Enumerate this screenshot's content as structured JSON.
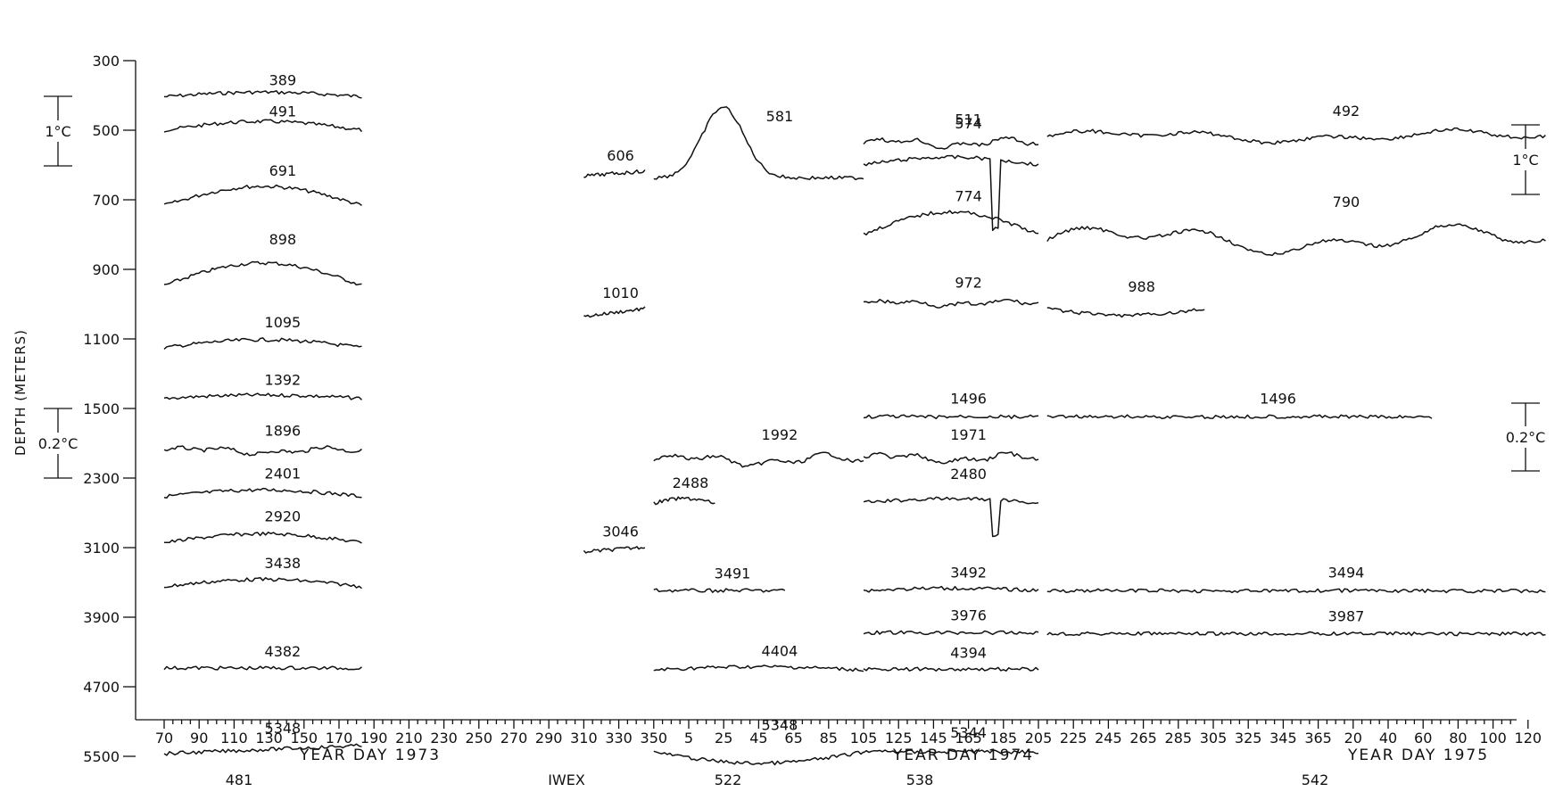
{
  "chart_data": {
    "type": "line",
    "ylabel": "DEPTH (METERS)",
    "y_ticks": [
      "300",
      "500",
      "700",
      "900",
      "1100",
      "1500",
      "2300",
      "3100",
      "3900",
      "4700",
      "5500"
    ],
    "x_tick_labels": [
      "70",
      "90",
      "110",
      "130",
      "150",
      "170",
      "190",
      "210",
      "230",
      "250",
      "270",
      "290",
      "310",
      "330",
      "350",
      "5",
      "25",
      "45",
      "65",
      "85",
      "105",
      "125",
      "145",
      "165",
      "185",
      "205",
      "225",
      "245",
      "265",
      "285",
      "305",
      "325",
      "345",
      "365",
      "20",
      "40",
      "60",
      "80",
      "100",
      "120"
    ],
    "year_labels": [
      "YEAR DAY  1973",
      "YEAR DAY  1974",
      "YEAR DAY  1975"
    ],
    "mooring_labels": [
      "481",
      "IWEX",
      "522",
      "538",
      "542"
    ],
    "scale_bars": {
      "left_upper": "1°C",
      "left_lower": "0.2°C",
      "right_upper": "1°C",
      "right_lower": "0.2°C"
    },
    "series": [
      {
        "name": "389",
        "depth_m": 389,
        "start": 70,
        "end": 183,
        "level": 0.85,
        "amp": 0.28,
        "shape": "hump"
      },
      {
        "name": "491",
        "depth_m": 491,
        "start": 70,
        "end": 183,
        "level": 0.65,
        "amp": 0.55,
        "shape": "hump"
      },
      {
        "name": "691",
        "depth_m": 691,
        "start": 70,
        "end": 183,
        "level": 0.0,
        "amp": 1.2,
        "shape": "hump"
      },
      {
        "name": "898",
        "depth_m": 898,
        "start": 70,
        "end": 183,
        "level": -0.35,
        "amp": 1.4,
        "shape": "hump"
      },
      {
        "name": "1095",
        "depth_m": 1095,
        "start": 70,
        "end": 183,
        "level": -0.2,
        "amp": 0.5,
        "shape": "hump"
      },
      {
        "name": "1392",
        "depth_m": 1392,
        "start": 70,
        "end": 183,
        "level": 0.1,
        "amp": 0.2,
        "shape": "hump"
      },
      {
        "name": "1896",
        "depth_m": 1896,
        "start": 70,
        "end": 183,
        "level": 0.2,
        "amp": 0.35,
        "shape": "noisy"
      },
      {
        "name": "2401",
        "depth_m": 2401,
        "start": 70,
        "end": 183,
        "level": -0.1,
        "amp": 0.4,
        "shape": "hump"
      },
      {
        "name": "2920",
        "depth_m": 2920,
        "start": 70,
        "end": 183,
        "level": -0.2,
        "amp": 0.55,
        "shape": "hump"
      },
      {
        "name": "3438",
        "depth_m": 3438,
        "start": 70,
        "end": 183,
        "level": -0.1,
        "amp": 0.45,
        "shape": "hump"
      },
      {
        "name": "4382",
        "depth_m": 4382,
        "start": 70,
        "end": 183,
        "level": 0.0,
        "amp": 0.05,
        "shape": "flat"
      },
      {
        "name": "5348",
        "depth_m": 5348,
        "start": 70,
        "end": 183,
        "level": -0.2,
        "amp": 0.5,
        "shape": "rise"
      },
      {
        "name": "606",
        "depth_m": 606,
        "start": 310,
        "end": 345,
        "level": 0.0,
        "amp": 0.3,
        "shape": "rise"
      },
      {
        "name": "1010",
        "depth_m": 1010,
        "start": 310,
        "end": 345,
        "level": 0.0,
        "amp": 0.5,
        "shape": "rise"
      },
      {
        "name": "3046",
        "depth_m": 3046,
        "start": 310,
        "end": 345,
        "level": 0.0,
        "amp": 0.3,
        "shape": "rise"
      },
      {
        "name": "581",
        "depth_m": 581,
        "start": 350,
        "end": 470,
        "level": 0.0,
        "amp": 2.2,
        "shape": "peak"
      },
      {
        "name": "1992",
        "depth_m": 1992,
        "start": 350,
        "end": 470,
        "level": 0.0,
        "amp": 0.6,
        "shape": "noisy"
      },
      {
        "name": "2488",
        "depth_m": 2488,
        "start": 350,
        "end": 385,
        "level": 0.0,
        "amp": 0.3,
        "shape": "hump"
      },
      {
        "name": "3491",
        "depth_m": 3491,
        "start": 350,
        "end": 425,
        "level": 0.0,
        "amp": 0.1,
        "shape": "flat"
      },
      {
        "name": "4404",
        "depth_m": 4404,
        "start": 350,
        "end": 470,
        "level": 0.0,
        "amp": 0.2,
        "shape": "hump"
      },
      {
        "name": "5348",
        "depth_m": 5348,
        "start": 350,
        "end": 470,
        "level": 0.0,
        "amp": 0.7,
        "shape": "dip"
      },
      {
        "name": "511",
        "depth_m": 511,
        "start": 470,
        "end": 570,
        "level": 0.0,
        "amp": 0.5,
        "shape": "noisy"
      },
      {
        "name": "574",
        "depth_m": 574,
        "start": 470,
        "end": 570,
        "level": 0.0,
        "amp": 1.6,
        "shape": "spike"
      },
      {
        "name": "774",
        "depth_m": 774,
        "start": 470,
        "end": 570,
        "level": 0.0,
        "amp": 1.4,
        "shape": "hump"
      },
      {
        "name": "972",
        "depth_m": 972,
        "start": 470,
        "end": 570,
        "level": 0.0,
        "amp": 0.3,
        "shape": "noisy"
      },
      {
        "name": "1496",
        "depth_m": 1496,
        "start": 470,
        "end": 570,
        "level": 0.0,
        "amp": 0.15,
        "shape": "flat"
      },
      {
        "name": "1971",
        "depth_m": 1971,
        "start": 470,
        "end": 570,
        "level": 0.0,
        "amp": 0.5,
        "shape": "noisy"
      },
      {
        "name": "2480",
        "depth_m": 2480,
        "start": 470,
        "end": 570,
        "level": 0.0,
        "amp": 0.8,
        "shape": "spike"
      },
      {
        "name": "3492",
        "depth_m": 3492,
        "start": 470,
        "end": 570,
        "level": 0.0,
        "amp": 0.15,
        "shape": "hump"
      },
      {
        "name": "3976",
        "depth_m": 3976,
        "start": 470,
        "end": 570,
        "level": 0.0,
        "amp": 0.1,
        "shape": "flat"
      },
      {
        "name": "4394",
        "depth_m": 4394,
        "start": 470,
        "end": 570,
        "level": 0.0,
        "amp": 0.05,
        "shape": "flat"
      },
      {
        "name": "5344",
        "depth_m": 5344,
        "start": 470,
        "end": 570,
        "level": 0.0,
        "amp": 0.2,
        "shape": "flat"
      },
      {
        "name": "492",
        "depth_m": 492,
        "start": 575,
        "end": 860,
        "level": 0.0,
        "amp": 0.6,
        "shape": "noisy"
      },
      {
        "name": "790",
        "depth_m": 790,
        "start": 575,
        "end": 860,
        "level": 0.0,
        "amp": 1.4,
        "shape": "noisy"
      },
      {
        "name": "988",
        "depth_m": 988,
        "start": 575,
        "end": 665,
        "level": 0.0,
        "amp": 0.4,
        "shape": "dip"
      },
      {
        "name": "1496",
        "depth_m": 1496,
        "start": 575,
        "end": 795,
        "level": 0.0,
        "amp": 0.15,
        "shape": "flat"
      },
      {
        "name": "3494",
        "depth_m": 3494,
        "start": 575,
        "end": 860,
        "level": 0.0,
        "amp": 0.15,
        "shape": "flat"
      },
      {
        "name": "3987",
        "depth_m": 3987,
        "start": 575,
        "end": 860,
        "level": 0.0,
        "amp": 0.1,
        "shape": "flat"
      }
    ]
  }
}
